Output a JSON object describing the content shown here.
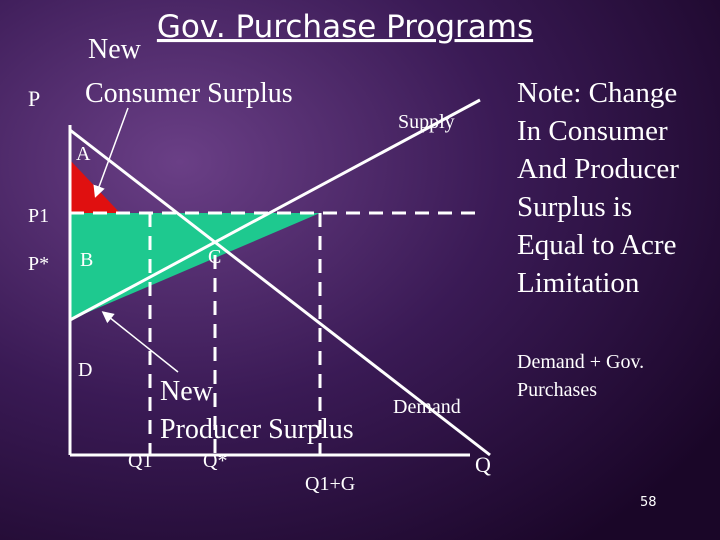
{
  "title": "Gov. Purchase Programs",
  "callouts": {
    "consumer_surplus": [
      "New",
      "Consumer Surplus"
    ],
    "producer_surplus": [
      "New",
      "Producer Surplus"
    ]
  },
  "axis_labels": {
    "price": "P",
    "quantity": "Q",
    "p1": "P1",
    "p_star": "P*",
    "q1": "Q1",
    "q_star": "Q*",
    "q1_g": "Q1+G"
  },
  "regions": {
    "a": "A",
    "b": "B",
    "c": "C",
    "d": "D"
  },
  "curves": {
    "supply": "Supply",
    "demand": "Demand",
    "demand_gov": [
      "Demand + Gov.",
      "Purchases"
    ]
  },
  "note": [
    "Note: Change",
    "In Consumer",
    "And Producer",
    "Surplus is",
    "Equal to Acre",
    "Limitation"
  ],
  "slide_number": "58"
}
